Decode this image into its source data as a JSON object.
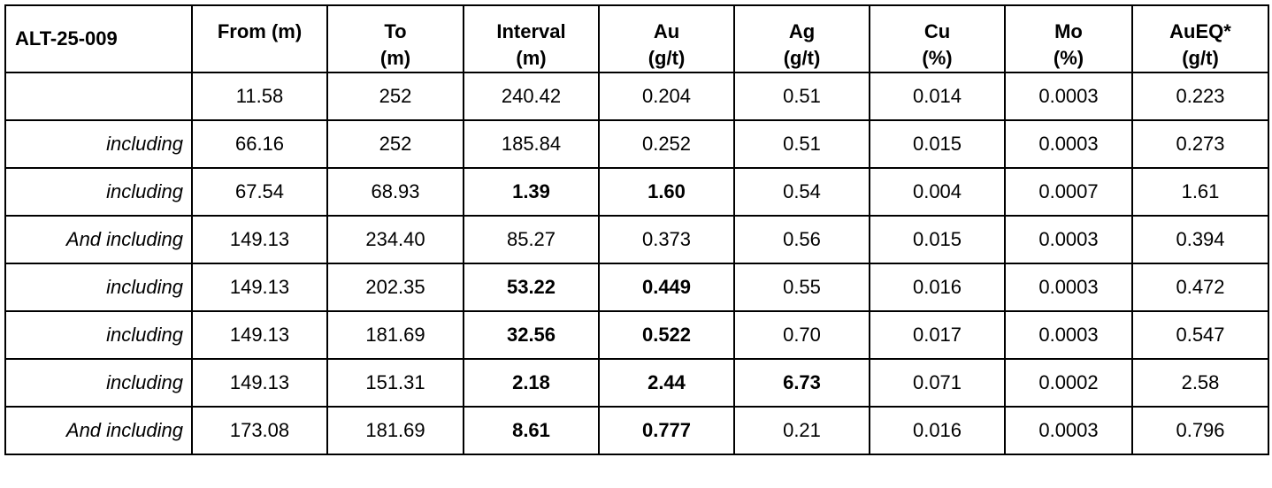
{
  "hole_id": "ALT-25-009",
  "columns": [
    {
      "key": "from",
      "line1": "From (m)",
      "line2": ""
    },
    {
      "key": "to",
      "line1": "To",
      "line2": "(m)"
    },
    {
      "key": "interval",
      "line1": "Interval",
      "line2": "(m)"
    },
    {
      "key": "au",
      "line1": "Au",
      "line2": "(g/t)"
    },
    {
      "key": "ag",
      "line1": "Ag",
      "line2": "(g/t)"
    },
    {
      "key": "cu",
      "line1": "Cu",
      "line2": "(%)"
    },
    {
      "key": "mo",
      "line1": "Mo",
      "line2": "(%)"
    },
    {
      "key": "aueq",
      "line1": "AuEQ*",
      "line2": "(g/t)"
    }
  ],
  "rows": [
    {
      "label": "",
      "from": "11.58",
      "to": "252",
      "interval": "240.42",
      "au": "0.204",
      "ag": "0.51",
      "cu": "0.014",
      "mo": "0.0003",
      "aueq": "0.223",
      "bold": []
    },
    {
      "label": "including",
      "from": "66.16",
      "to": "252",
      "interval": "185.84",
      "au": "0.252",
      "ag": "0.51",
      "cu": "0.015",
      "mo": "0.0003",
      "aueq": "0.273",
      "bold": []
    },
    {
      "label": "including",
      "from": "67.54",
      "to": "68.93",
      "interval": "1.39",
      "au": "1.60",
      "ag": "0.54",
      "cu": "0.004",
      "mo": "0.0007",
      "aueq": "1.61",
      "bold": [
        "interval",
        "au"
      ]
    },
    {
      "label": "And including",
      "from": "149.13",
      "to": "234.40",
      "interval": "85.27",
      "au": "0.373",
      "ag": "0.56",
      "cu": "0.015",
      "mo": "0.0003",
      "aueq": "0.394",
      "bold": []
    },
    {
      "label": "including",
      "from": "149.13",
      "to": "202.35",
      "interval": "53.22",
      "au": "0.449",
      "ag": "0.55",
      "cu": "0.016",
      "mo": "0.0003",
      "aueq": "0.472",
      "bold": [
        "interval",
        "au"
      ]
    },
    {
      "label": "including",
      "from": "149.13",
      "to": "181.69",
      "interval": "32.56",
      "au": "0.522",
      "ag": "0.70",
      "cu": "0.017",
      "mo": "0.0003",
      "aueq": "0.547",
      "bold": [
        "interval",
        "au"
      ]
    },
    {
      "label": "including",
      "from": "149.13",
      "to": "151.31",
      "interval": "2.18",
      "au": "2.44",
      "ag": "6.73",
      "cu": "0.071",
      "mo": "0.0002",
      "aueq": "2.58",
      "bold": [
        "interval",
        "au",
        "ag"
      ]
    },
    {
      "label": "And including",
      "from": "173.08",
      "to": "181.69",
      "interval": "8.61",
      "au": "0.777",
      "ag": "0.21",
      "cu": "0.016",
      "mo": "0.0003",
      "aueq": "0.796",
      "bold": [
        "interval",
        "au"
      ]
    }
  ]
}
